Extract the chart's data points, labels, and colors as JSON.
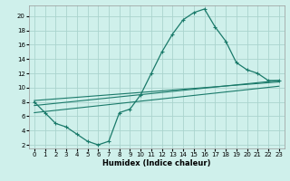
{
  "xlabel": "Humidex (Indice chaleur)",
  "ylabel": "",
  "xlim": [
    -0.5,
    23.5
  ],
  "ylim": [
    1.5,
    21.5
  ],
  "yticks": [
    2,
    4,
    6,
    8,
    10,
    12,
    14,
    16,
    18,
    20
  ],
  "xticks": [
    0,
    1,
    2,
    3,
    4,
    5,
    6,
    7,
    8,
    9,
    10,
    11,
    12,
    13,
    14,
    15,
    16,
    17,
    18,
    19,
    20,
    21,
    22,
    23
  ],
  "bg_color": "#cff0eb",
  "grid_color": "#aad4ce",
  "line_color": "#1a7a6a",
  "line1_x": [
    0,
    1,
    2,
    3,
    4,
    5,
    6,
    7,
    8,
    9,
    10,
    11,
    12,
    13,
    14,
    15,
    16,
    17,
    18,
    19,
    20,
    21,
    22,
    23
  ],
  "line1_y": [
    8,
    6.5,
    5,
    4.5,
    3.5,
    2.5,
    2,
    2.5,
    6.5,
    7,
    9,
    12,
    15,
    17.5,
    19.5,
    20.5,
    21,
    18.5,
    16.5,
    13.5,
    12.5,
    12,
    11,
    11
  ],
  "line2_x": [
    0,
    23
  ],
  "line2_y": [
    7.5,
    11.0
  ],
  "line3_x": [
    0,
    23
  ],
  "line3_y": [
    8.2,
    10.8
  ],
  "line4_x": [
    0,
    23
  ],
  "line4_y": [
    6.5,
    10.2
  ]
}
